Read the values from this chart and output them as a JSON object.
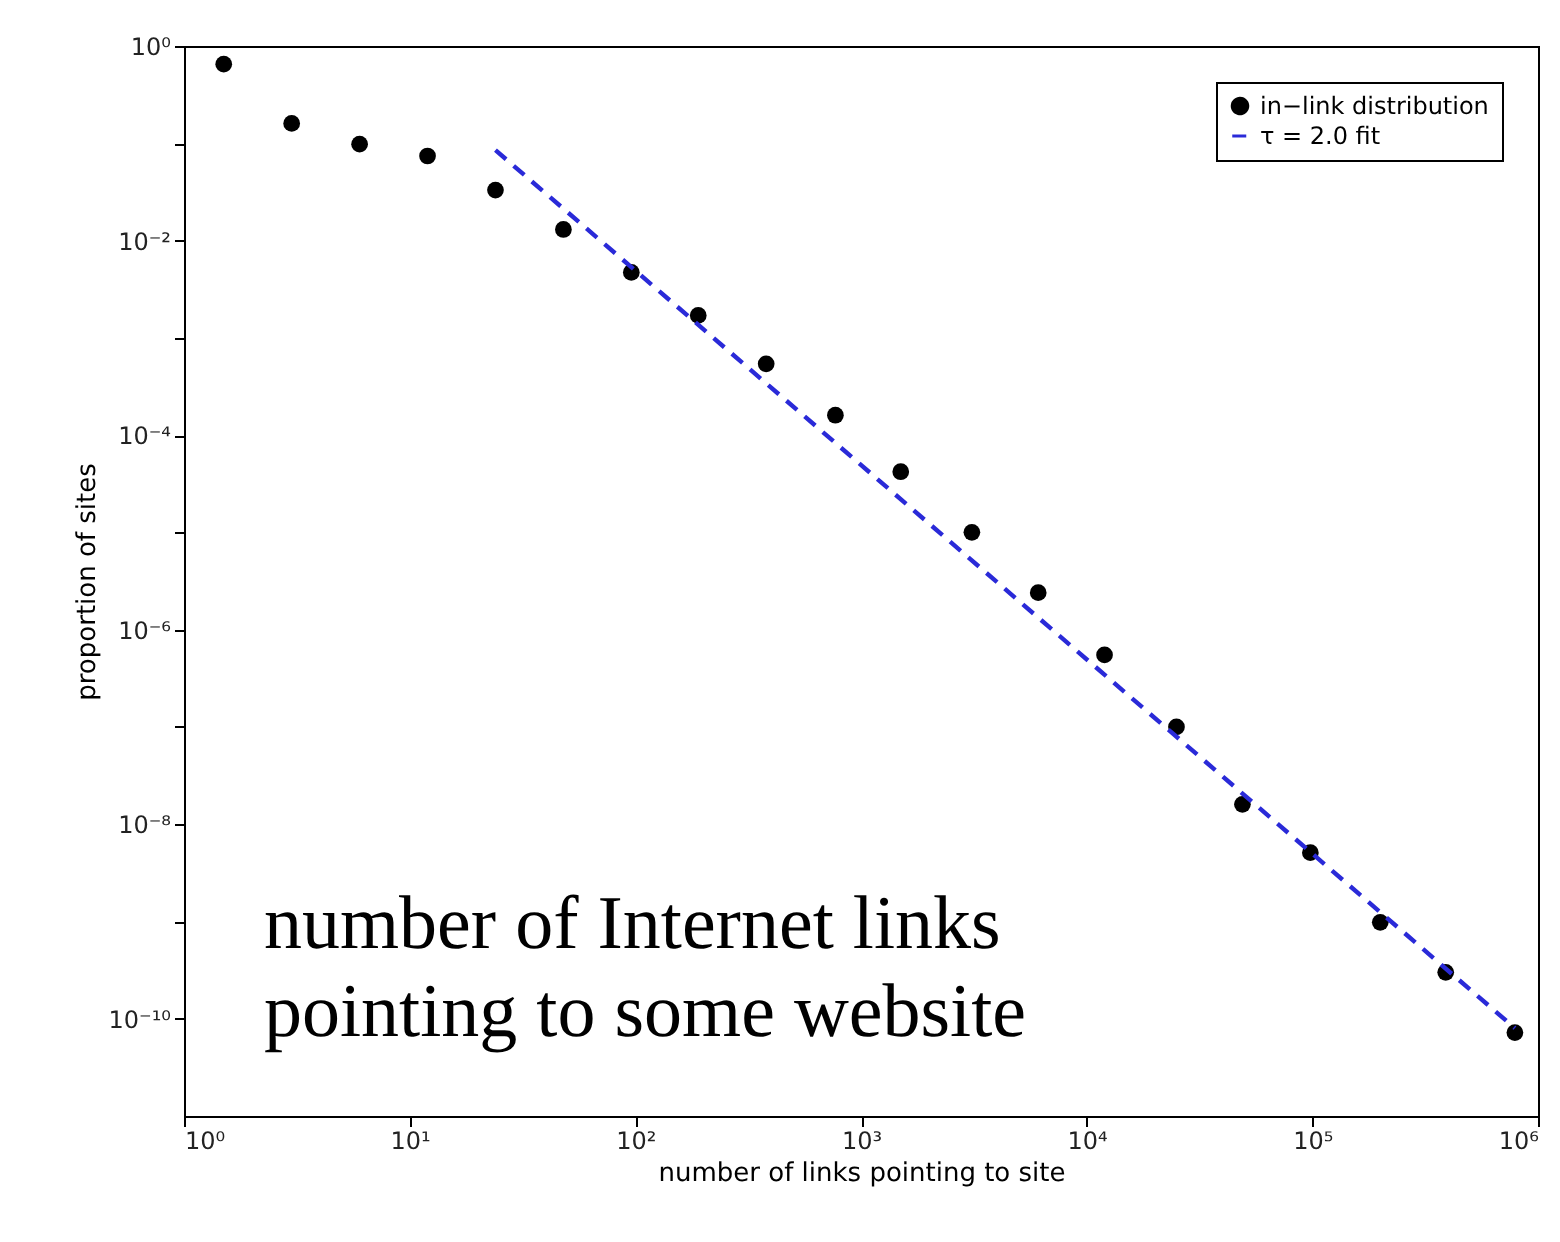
{
  "chart_data": {
    "type": "scatter",
    "xlabel": "number of links pointing to site",
    "ylabel": "proportion of sites",
    "log": "xy",
    "grid": false,
    "legend": "top right",
    "xlim": [
      1,
      1000000
    ],
    "ylim": [
      1e-11,
      1
    ],
    "xticks": [
      {
        "value": 1,
        "label": "10⁰"
      },
      {
        "value": 10,
        "label": "10¹"
      },
      {
        "value": 100,
        "label": "10²"
      },
      {
        "value": 1000,
        "label": "10³"
      },
      {
        "value": 10000,
        "label": "10⁴"
      },
      {
        "value": 100000,
        "label": "10⁵"
      },
      {
        "value": 1000000,
        "label": "10⁶"
      }
    ],
    "yticks": [
      {
        "value": 1,
        "label": "10⁰"
      },
      {
        "value": 0.1,
        "label": null
      },
      {
        "value": 0.01,
        "label": "10⁻²"
      },
      {
        "value": 0.001,
        "label": null
      },
      {
        "value": 0.0001,
        "label": "10⁻⁴"
      },
      {
        "value": 1e-05,
        "label": null
      },
      {
        "value": 1e-06,
        "label": "10⁻⁶"
      },
      {
        "value": 1e-07,
        "label": null
      },
      {
        "value": 1e-08,
        "label": "10⁻⁸"
      },
      {
        "value": 1e-09,
        "label": null
      },
      {
        "value": 1e-10,
        "label": "10⁻¹⁰"
      }
    ],
    "annotations": [
      "number of Internet links pointing to some website"
    ],
    "series": [
      {
        "name": "in−link distribution",
        "marker": "circle",
        "color": "#000000",
        "x": [
          1.5,
          3,
          6,
          12,
          24,
          48,
          96,
          190,
          380,
          770,
          1500,
          3100,
          6100,
          12000,
          25000,
          49000,
          98000,
          200000,
          390000,
          790000
        ],
        "values": [
          0.65,
          0.16,
          0.098,
          0.074,
          0.033,
          0.013,
          0.0047,
          0.0017,
          0.00054,
          0.00016,
          4.2e-05,
          1e-05,
          2.4e-06,
          5.5e-07,
          1e-07,
          1.6e-08,
          5.1e-09,
          9.8e-10,
          3e-10,
          7.2e-11
        ]
      },
      {
        "name": "τ = 2.0 fit",
        "type": "line",
        "line_style": "dashed",
        "color": "#2a2ad8",
        "x": [
          24,
          790000
        ],
        "values": [
          0.085,
          8e-11
        ]
      }
    ]
  }
}
